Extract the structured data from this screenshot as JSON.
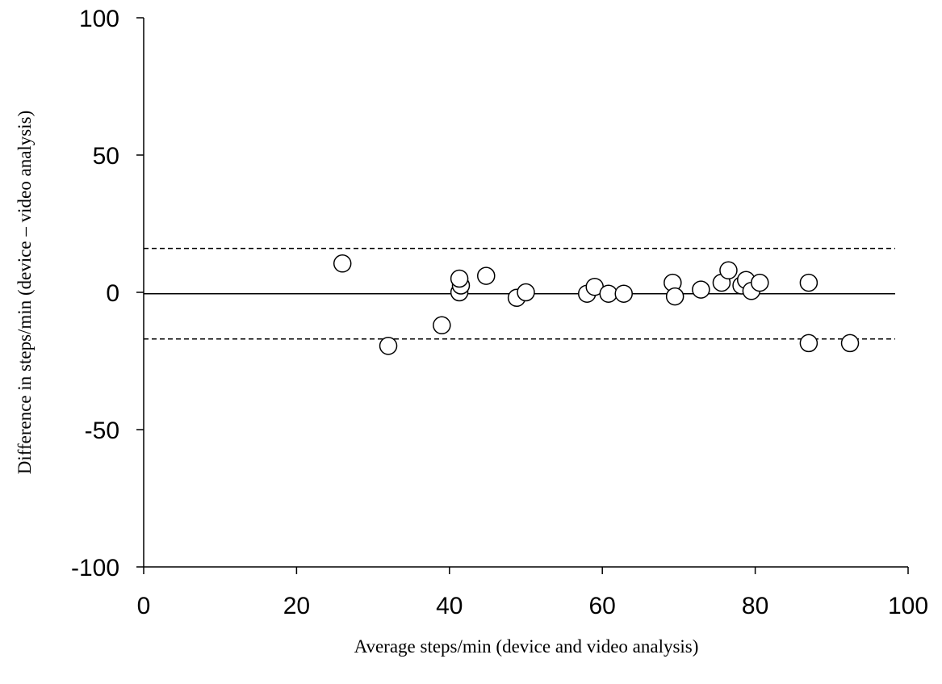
{
  "chart_data": {
    "type": "scatter",
    "title": "",
    "xlabel": "Average steps/min (device and video analysis)",
    "ylabel": "Difference in steps/min  (device – video analysis)",
    "xlim": [
      0,
      100
    ],
    "ylim": [
      -100,
      100
    ],
    "x_ticks": [
      "0",
      "20",
      "40",
      "60",
      "80",
      "100"
    ],
    "y_ticks": [
      "100",
      "50",
      "0",
      "-50",
      "-100"
    ],
    "grid": false,
    "legend": "none",
    "marker": "open-circle",
    "colors": {
      "marker_stroke": "#000000",
      "marker_fill": "#ffffff",
      "line": "#000000"
    },
    "reference_lines": [
      {
        "y": -0.5,
        "style": "solid"
      },
      {
        "y": 16,
        "style": "dashed"
      },
      {
        "y": -17,
        "style": "dashed"
      }
    ],
    "points": [
      {
        "x": 26,
        "y": 10.5
      },
      {
        "x": 32,
        "y": -19.5
      },
      {
        "x": 39,
        "y": -12
      },
      {
        "x": 41.3,
        "y": 0
      },
      {
        "x": 41.5,
        "y": 2.5
      },
      {
        "x": 41.3,
        "y": 5
      },
      {
        "x": 44.8,
        "y": 6
      },
      {
        "x": 48.8,
        "y": -2
      },
      {
        "x": 50,
        "y": 0
      },
      {
        "x": 58,
        "y": -0.5
      },
      {
        "x": 59,
        "y": 2
      },
      {
        "x": 60.8,
        "y": -0.5
      },
      {
        "x": 62.8,
        "y": -0.5
      },
      {
        "x": 69.2,
        "y": 3.5
      },
      {
        "x": 69.5,
        "y": -1.5
      },
      {
        "x": 72.9,
        "y": 1
      },
      {
        "x": 75.6,
        "y": 3.5
      },
      {
        "x": 76.5,
        "y": 8
      },
      {
        "x": 78.2,
        "y": 2.5
      },
      {
        "x": 78.8,
        "y": 4.5
      },
      {
        "x": 79.5,
        "y": 0.5
      },
      {
        "x": 80.6,
        "y": 3.5
      },
      {
        "x": 87,
        "y": 3.5
      },
      {
        "x": 87,
        "y": -18.5
      },
      {
        "x": 92.4,
        "y": -18.5
      }
    ]
  }
}
